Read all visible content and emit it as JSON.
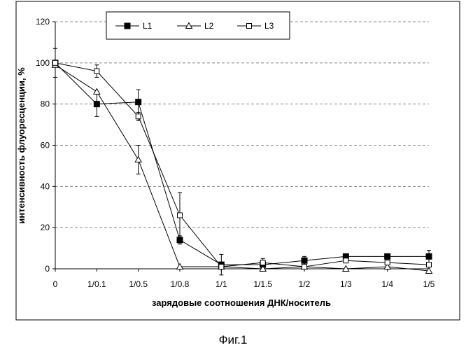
{
  "chart_data": {
    "type": "line",
    "ylabel": "интенсивность флуоресценции, %",
    "xlabel": "зарядовые соотношения ДНК/носитель",
    "categories": [
      "0",
      "1/0.1",
      "1/0.5",
      "1/0.8",
      "1/1",
      "1/1.5",
      "1/2",
      "1/3",
      "1/4",
      "1/5"
    ],
    "yticks": [
      "0",
      "20",
      "40",
      "60",
      "80",
      "100",
      "120"
    ],
    "ylim": [
      0,
      120
    ],
    "grid": "horizontal dashed",
    "legend_position": "top",
    "series": [
      {
        "name": "L1",
        "marker": "filled-square",
        "values": [
          100,
          80,
          81,
          14,
          2,
          2,
          4,
          6,
          6,
          6
        ],
        "errors": [
          7,
          6,
          6,
          2,
          5,
          2,
          2,
          1,
          1,
          3
        ]
      },
      {
        "name": "L2",
        "marker": "open-triangle",
        "values": [
          99,
          86,
          53,
          1,
          1,
          0,
          1,
          0,
          1,
          -1
        ],
        "errors": [
          0,
          0,
          7,
          0,
          0,
          0,
          0,
          0,
          0,
          0
        ]
      },
      {
        "name": "L3",
        "marker": "open-square",
        "values": [
          100,
          96,
          74,
          26,
          1,
          3,
          1,
          4,
          3,
          2
        ],
        "errors": [
          0,
          3,
          2,
          11,
          0,
          2,
          0,
          0,
          0,
          0
        ]
      }
    ]
  },
  "figure_caption": "Фиг.1"
}
